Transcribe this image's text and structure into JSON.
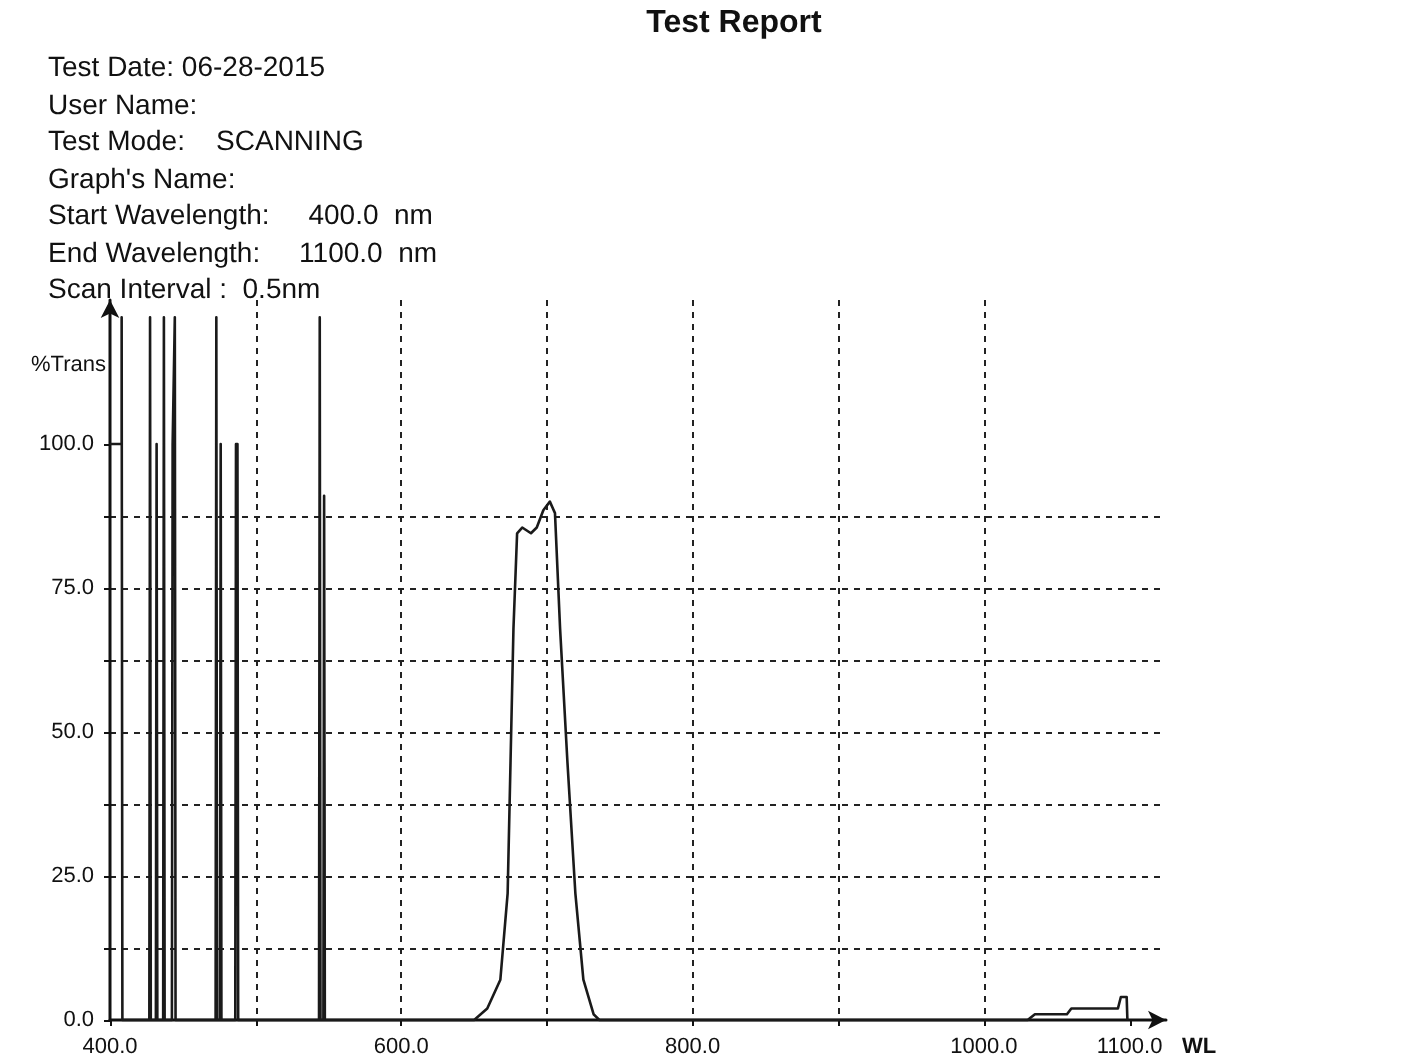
{
  "chart_data": {
    "type": "line",
    "title": "Test Report",
    "annotations": [
      "Test Date: 06-28-2015",
      "User Name:",
      "Test Mode:    SCANNING",
      "Graph's Name:",
      "Start Wavelength:     400.0  nm",
      "End Wavelength:     1100.0  nm",
      "Scan Interval :  0.5nm"
    ],
    "xlabel": "WL",
    "ylabel": "%Trans",
    "x": [
      400,
      408,
      408,
      408.5,
      427,
      427.5,
      428,
      431.5,
      432,
      432.5,
      436.5,
      437,
      437.5,
      442.5,
      443,
      444.5,
      445,
      472.5,
      473,
      473.5,
      475.5,
      476,
      476.5,
      486,
      486.5,
      487.5,
      488,
      543.5,
      544,
      544.5,
      546.5,
      547,
      547.5,
      650,
      659,
      668,
      673,
      675,
      677,
      679.5,
      683,
      689,
      693,
      697.5,
      702,
      705.5,
      709,
      714,
      719.5,
      725,
      732,
      736,
      1030,
      1035,
      1057,
      1060,
      1092,
      1094,
      1098,
      1098.5
    ],
    "series": [
      {
        "color": "#1a1a1a",
        "values": [
          100,
          100,
          122,
          0,
          0,
          122,
          0,
          0,
          100,
          0,
          0,
          122,
          0,
          0,
          100,
          122,
          0,
          0,
          122,
          0,
          0,
          100,
          0,
          0,
          100,
          100,
          0,
          0,
          122,
          0,
          0,
          91,
          0,
          0,
          2,
          7,
          22,
          45,
          68,
          84.5,
          85.5,
          84.5,
          85.5,
          88.5,
          90,
          88,
          68,
          45,
          22,
          7,
          1,
          0,
          0,
          1,
          1,
          2,
          2,
          4,
          4,
          0
        ]
      }
    ],
    "xlim": [
      400,
      1125
    ],
    "xticks": [
      {
        "value": 400,
        "label": "400.0"
      },
      {
        "value": 500,
        "label": null
      },
      {
        "value": 600,
        "label": "600.0"
      },
      {
        "value": 700,
        "label": null
      },
      {
        "value": 800,
        "label": "800.0"
      },
      {
        "value": 900,
        "label": null
      },
      {
        "value": 1000,
        "label": "1000.0"
      },
      {
        "value": 1100,
        "label": "1100.0"
      }
    ],
    "ylim": [
      0,
      125
    ],
    "yticks": [
      {
        "value": 0,
        "label": "0.0"
      },
      {
        "value": 12.5,
        "label": null
      },
      {
        "value": 25,
        "label": "25.0"
      },
      {
        "value": 37.5,
        "label": null
      },
      {
        "value": 50,
        "label": "50.0"
      },
      {
        "value": 62.5,
        "label": null
      },
      {
        "value": 75,
        "label": "75.0"
      },
      {
        "value": 87.5,
        "label": null
      },
      {
        "value": 100,
        "label": "100.0"
      }
    ],
    "grid": true,
    "marker": "none"
  }
}
